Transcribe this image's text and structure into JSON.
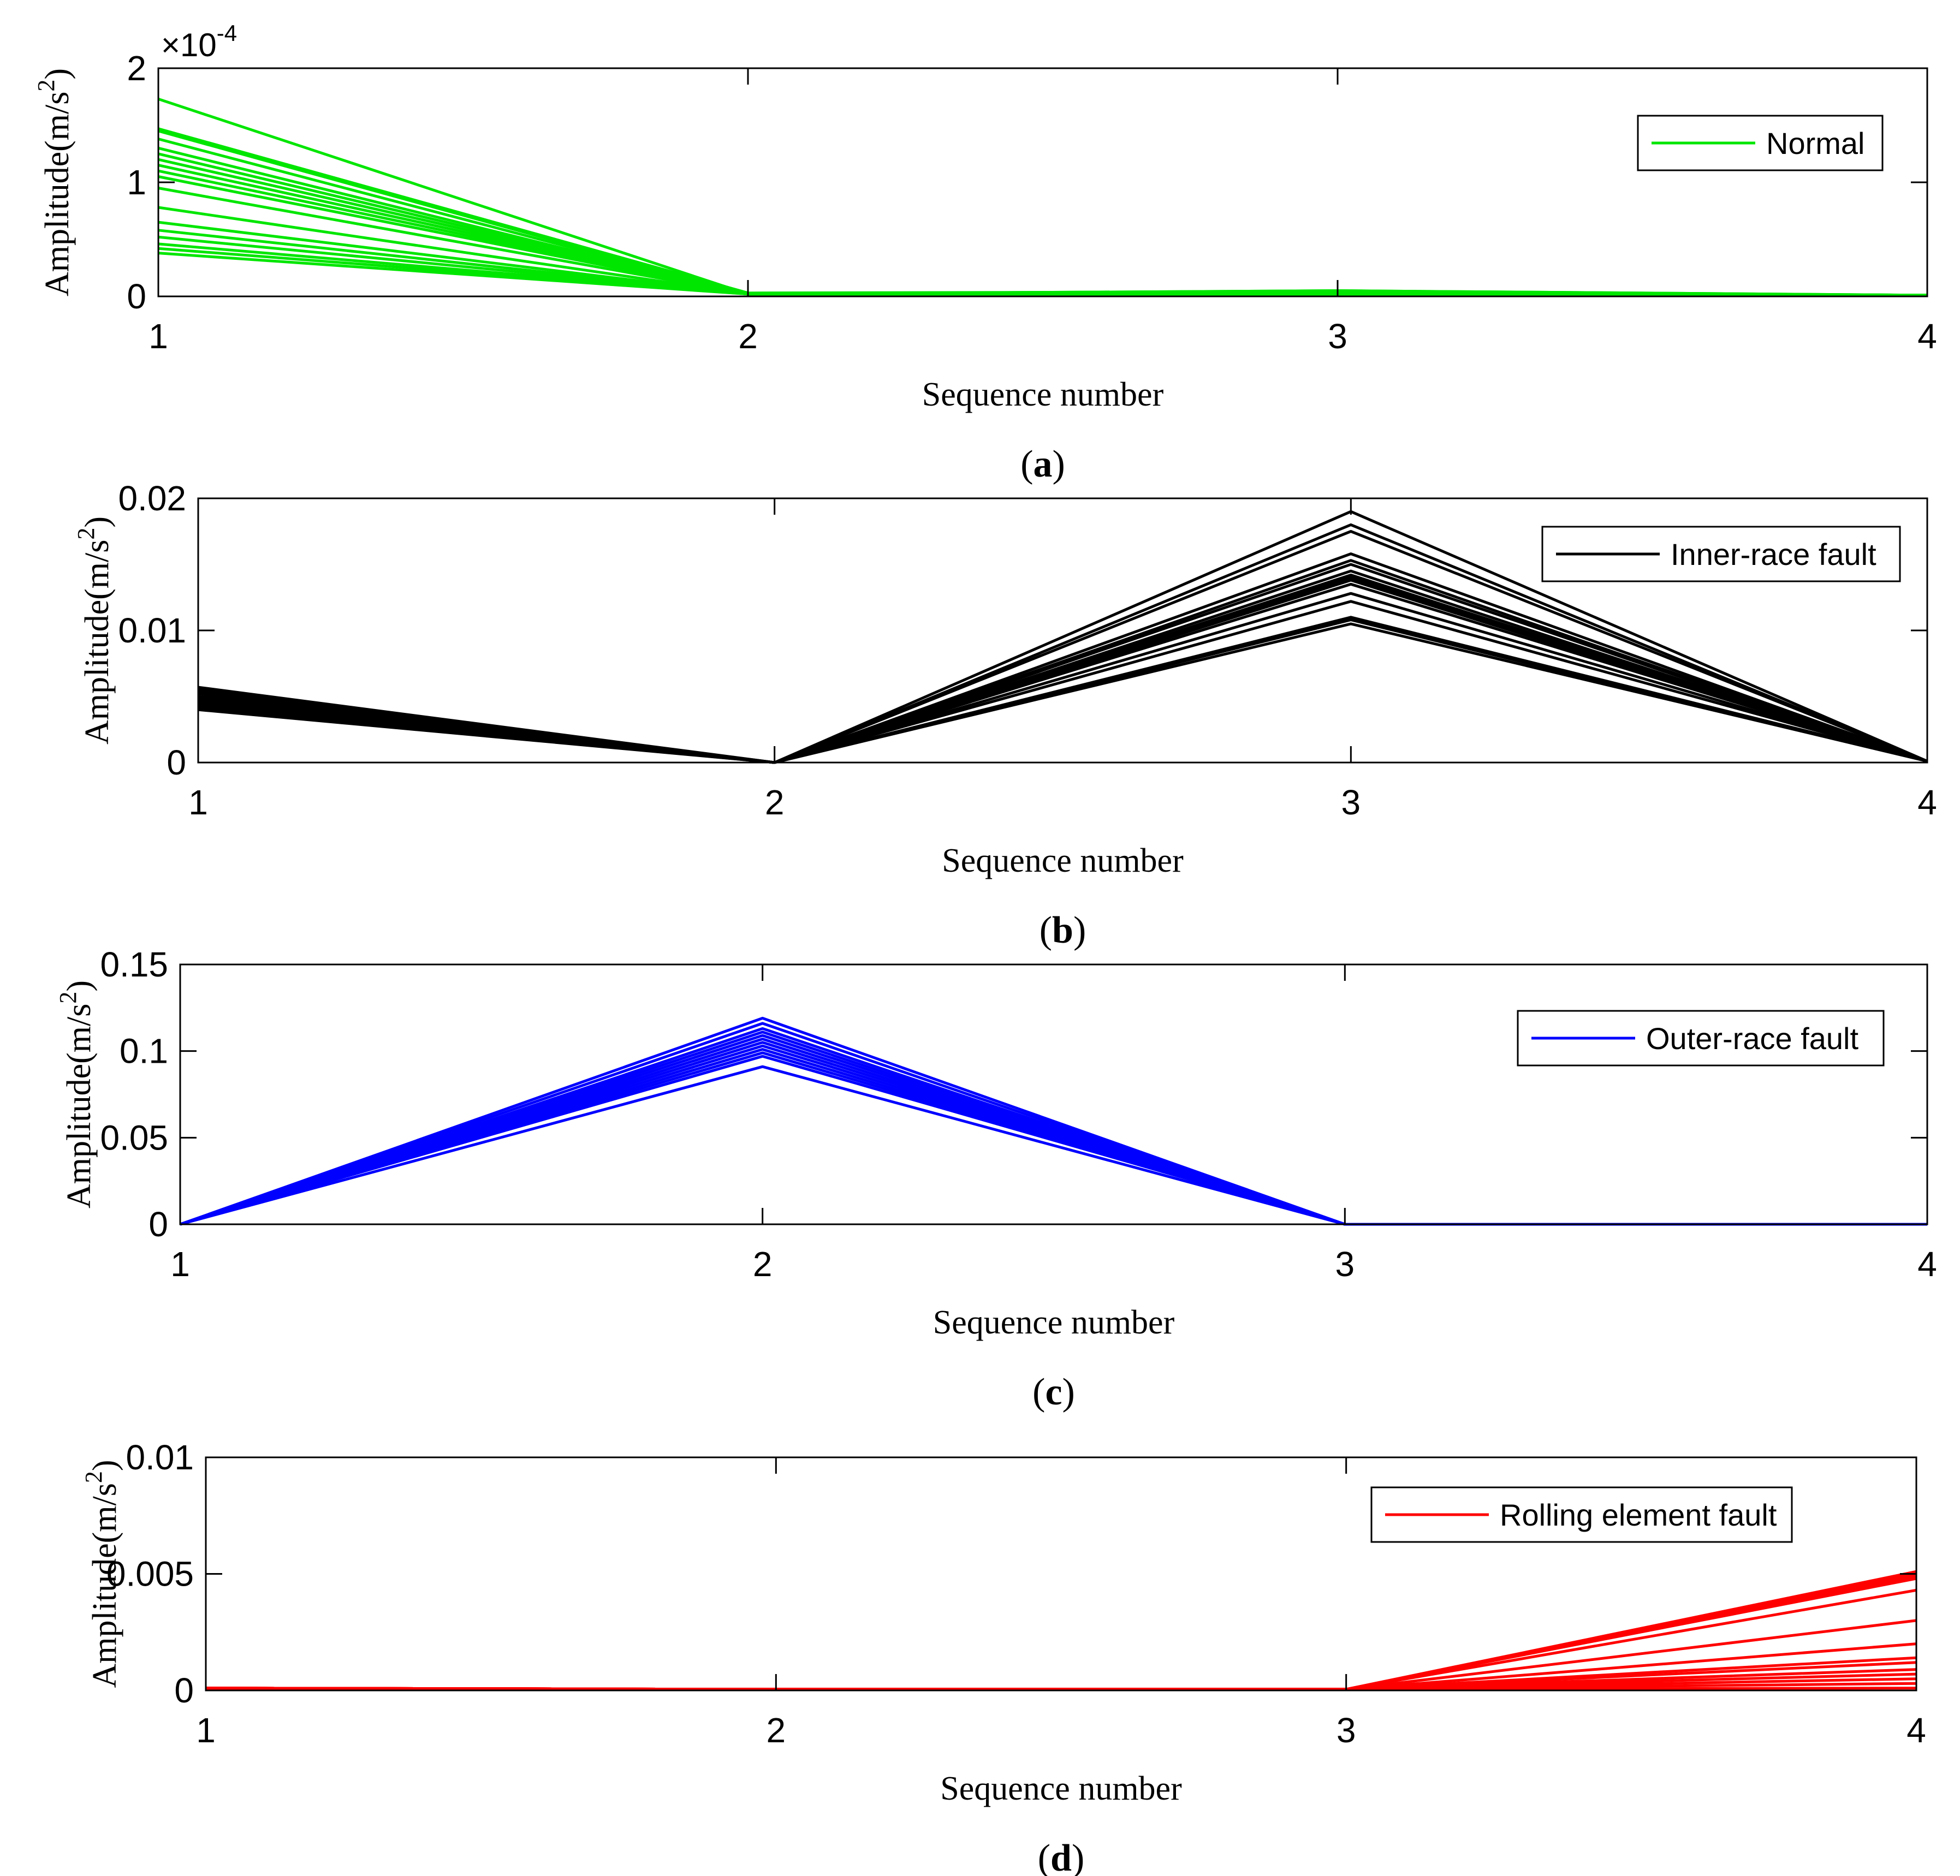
{
  "chart_data": [
    {
      "type": "line",
      "panel_label": "a",
      "legend": "Normal",
      "legend_position": "top-right",
      "color": "#00e600",
      "ylabel": "Amplitude(m/s",
      "ylabel_sup": "2",
      "ylabel_close": ")",
      "xlabel": "Sequence number",
      "exponent_label": "×10",
      "exponent_power": "-4",
      "x": [
        1,
        2,
        3,
        4
      ],
      "xticks": [
        "1",
        "2",
        "3",
        "4"
      ],
      "yticks": [
        "0",
        "1",
        "2"
      ],
      "ytick_values": [
        0,
        1,
        2
      ],
      "ylim": [
        0,
        2
      ],
      "series": [
        {
          "values": [
            1.73,
            0.02,
            0.05,
            0.01
          ]
        },
        {
          "values": [
            1.47,
            0.03,
            0.04,
            0.01
          ]
        },
        {
          "values": [
            1.45,
            0.02,
            0.03,
            0.01
          ]
        },
        {
          "values": [
            1.38,
            0.02,
            0.05,
            0.01
          ]
        },
        {
          "values": [
            1.3,
            0.02,
            0.03,
            0.01
          ]
        },
        {
          "values": [
            1.25,
            0.02,
            0.04,
            0.01
          ]
        },
        {
          "values": [
            1.2,
            0.02,
            0.03,
            0.01
          ]
        },
        {
          "values": [
            1.15,
            0.02,
            0.04,
            0.01
          ]
        },
        {
          "values": [
            1.1,
            0.02,
            0.03,
            0.01
          ]
        },
        {
          "values": [
            1.05,
            0.02,
            0.02,
            0.01
          ]
        },
        {
          "values": [
            0.95,
            0.02,
            0.03,
            0.01
          ]
        },
        {
          "values": [
            0.78,
            0.02,
            0.02,
            0.01
          ]
        },
        {
          "values": [
            0.65,
            0.02,
            0.03,
            0.01
          ]
        },
        {
          "values": [
            0.58,
            0.02,
            0.02,
            0.01
          ]
        },
        {
          "values": [
            0.52,
            0.02,
            0.03,
            0.01
          ]
        },
        {
          "values": [
            0.46,
            0.02,
            0.02,
            0.01
          ]
        },
        {
          "values": [
            0.42,
            0.02,
            0.02,
            0.01
          ]
        },
        {
          "values": [
            0.38,
            0.02,
            0.02,
            0.01
          ]
        }
      ]
    },
    {
      "type": "line",
      "panel_label": "b",
      "legend": "Inner-race fault",
      "legend_position": "top-right",
      "color": "#000000",
      "ylabel": "Amplitude(m/s",
      "ylabel_sup": "2",
      "ylabel_close": ")",
      "xlabel": "Sequence number",
      "x": [
        1,
        2,
        3,
        4
      ],
      "xticks": [
        "1",
        "2",
        "3",
        "4"
      ],
      "yticks": [
        "0",
        "0.01",
        "0.02"
      ],
      "ytick_values": [
        0,
        0.01,
        0.02
      ],
      "ylim": [
        0,
        0.02
      ],
      "series": [
        {
          "values": [
            0.0057,
            0,
            0.019,
            0.0001
          ]
        },
        {
          "values": [
            0.0055,
            0,
            0.018,
            0.0001
          ]
        },
        {
          "values": [
            0.0054,
            0,
            0.0175,
            0.0001
          ]
        },
        {
          "values": [
            0.0053,
            0,
            0.0158,
            0.0001
          ]
        },
        {
          "values": [
            0.0052,
            0,
            0.0153,
            0.0001
          ]
        },
        {
          "values": [
            0.005,
            0,
            0.015,
            0.0001
          ]
        },
        {
          "values": [
            0.0049,
            0,
            0.0145,
            0.0001
          ]
        },
        {
          "values": [
            0.0048,
            0,
            0.0142,
            0.0001
          ]
        },
        {
          "values": [
            0.0047,
            0,
            0.014,
            0.0001
          ]
        },
        {
          "values": [
            0.0046,
            0,
            0.0138,
            0.0001
          ]
        },
        {
          "values": [
            0.0045,
            0,
            0.0135,
            0.0001
          ]
        },
        {
          "values": [
            0.0044,
            0,
            0.0128,
            0.0001
          ]
        },
        {
          "values": [
            0.0043,
            0,
            0.0122,
            0.0001
          ]
        },
        {
          "values": [
            0.0042,
            0,
            0.011,
            0.0001
          ]
        },
        {
          "values": [
            0.0041,
            0,
            0.0108,
            0.0001
          ]
        },
        {
          "values": [
            0.004,
            0,
            0.0105,
            0.0001
          ]
        }
      ]
    },
    {
      "type": "line",
      "panel_label": "c",
      "legend": "Outer-race fault",
      "legend_position": "top-right",
      "color": "#0000ff",
      "ylabel": "Amplitude(m/s",
      "ylabel_sup": "2",
      "ylabel_close": ")",
      "xlabel": "Sequence number",
      "x": [
        1,
        2,
        3,
        4
      ],
      "xticks": [
        "1",
        "2",
        "3",
        "4"
      ],
      "yticks": [
        "0",
        "0.05",
        "0.1",
        "0.15"
      ],
      "ytick_values": [
        0,
        0.05,
        0.1,
        0.15
      ],
      "ylim": [
        0,
        0.15
      ],
      "series": [
        {
          "values": [
            0,
            0.119,
            0,
            0
          ]
        },
        {
          "values": [
            0,
            0.116,
            0,
            0
          ]
        },
        {
          "values": [
            0,
            0.113,
            0,
            0
          ]
        },
        {
          "values": [
            0,
            0.111,
            0,
            0
          ]
        },
        {
          "values": [
            0,
            0.109,
            0,
            0
          ]
        },
        {
          "values": [
            0,
            0.107,
            0,
            0
          ]
        },
        {
          "values": [
            0,
            0.105,
            0,
            0
          ]
        },
        {
          "values": [
            0,
            0.103,
            0,
            0
          ]
        },
        {
          "values": [
            0,
            0.101,
            0,
            0
          ]
        },
        {
          "values": [
            0,
            0.099,
            0,
            0
          ]
        },
        {
          "values": [
            0,
            0.097,
            0,
            0
          ]
        },
        {
          "values": [
            0,
            0.091,
            0,
            0
          ]
        }
      ]
    },
    {
      "type": "line",
      "panel_label": "d",
      "legend": "Rolling element fault",
      "legend_position": "top-right",
      "color": "#ff0000",
      "ylabel": "Amplitude(m/s",
      "ylabel_sup": "2",
      "ylabel_close": ")",
      "xlabel": "Sequence number",
      "x": [
        1,
        2,
        3,
        4
      ],
      "xticks": [
        "1",
        "2",
        "3",
        "4"
      ],
      "yticks": [
        "0",
        "0.005",
        "0.01"
      ],
      "ytick_values": [
        0,
        0.005,
        0.01
      ],
      "ylim": [
        0,
        0.01
      ],
      "series": [
        {
          "values": [
            0.0001,
            5e-05,
            5e-05,
            0.0051
          ]
        },
        {
          "values": [
            0.0001,
            5e-05,
            5e-05,
            0.005
          ]
        },
        {
          "values": [
            0.0001,
            5e-05,
            5e-05,
            0.0049
          ]
        },
        {
          "values": [
            0.0001,
            5e-05,
            5e-05,
            0.0048
          ]
        },
        {
          "values": [
            0.0001,
            5e-05,
            5e-05,
            0.0043
          ]
        },
        {
          "values": [
            0.0001,
            5e-05,
            5e-05,
            0.003
          ]
        },
        {
          "values": [
            0.0001,
            5e-05,
            5e-05,
            0.002
          ]
        },
        {
          "values": [
            0.0001,
            5e-05,
            5e-05,
            0.0014
          ]
        },
        {
          "values": [
            0.0001,
            5e-05,
            5e-05,
            0.0012
          ]
        },
        {
          "values": [
            0.0001,
            5e-05,
            5e-05,
            0.0009
          ]
        },
        {
          "values": [
            0.0001,
            5e-05,
            5e-05,
            0.0007
          ]
        },
        {
          "values": [
            0.0001,
            5e-05,
            5e-05,
            0.0005
          ]
        },
        {
          "values": [
            0.0001,
            5e-05,
            5e-05,
            0.0003
          ]
        },
        {
          "values": [
            0.0001,
            5e-05,
            5e-05,
            0.0001
          ]
        }
      ]
    }
  ]
}
